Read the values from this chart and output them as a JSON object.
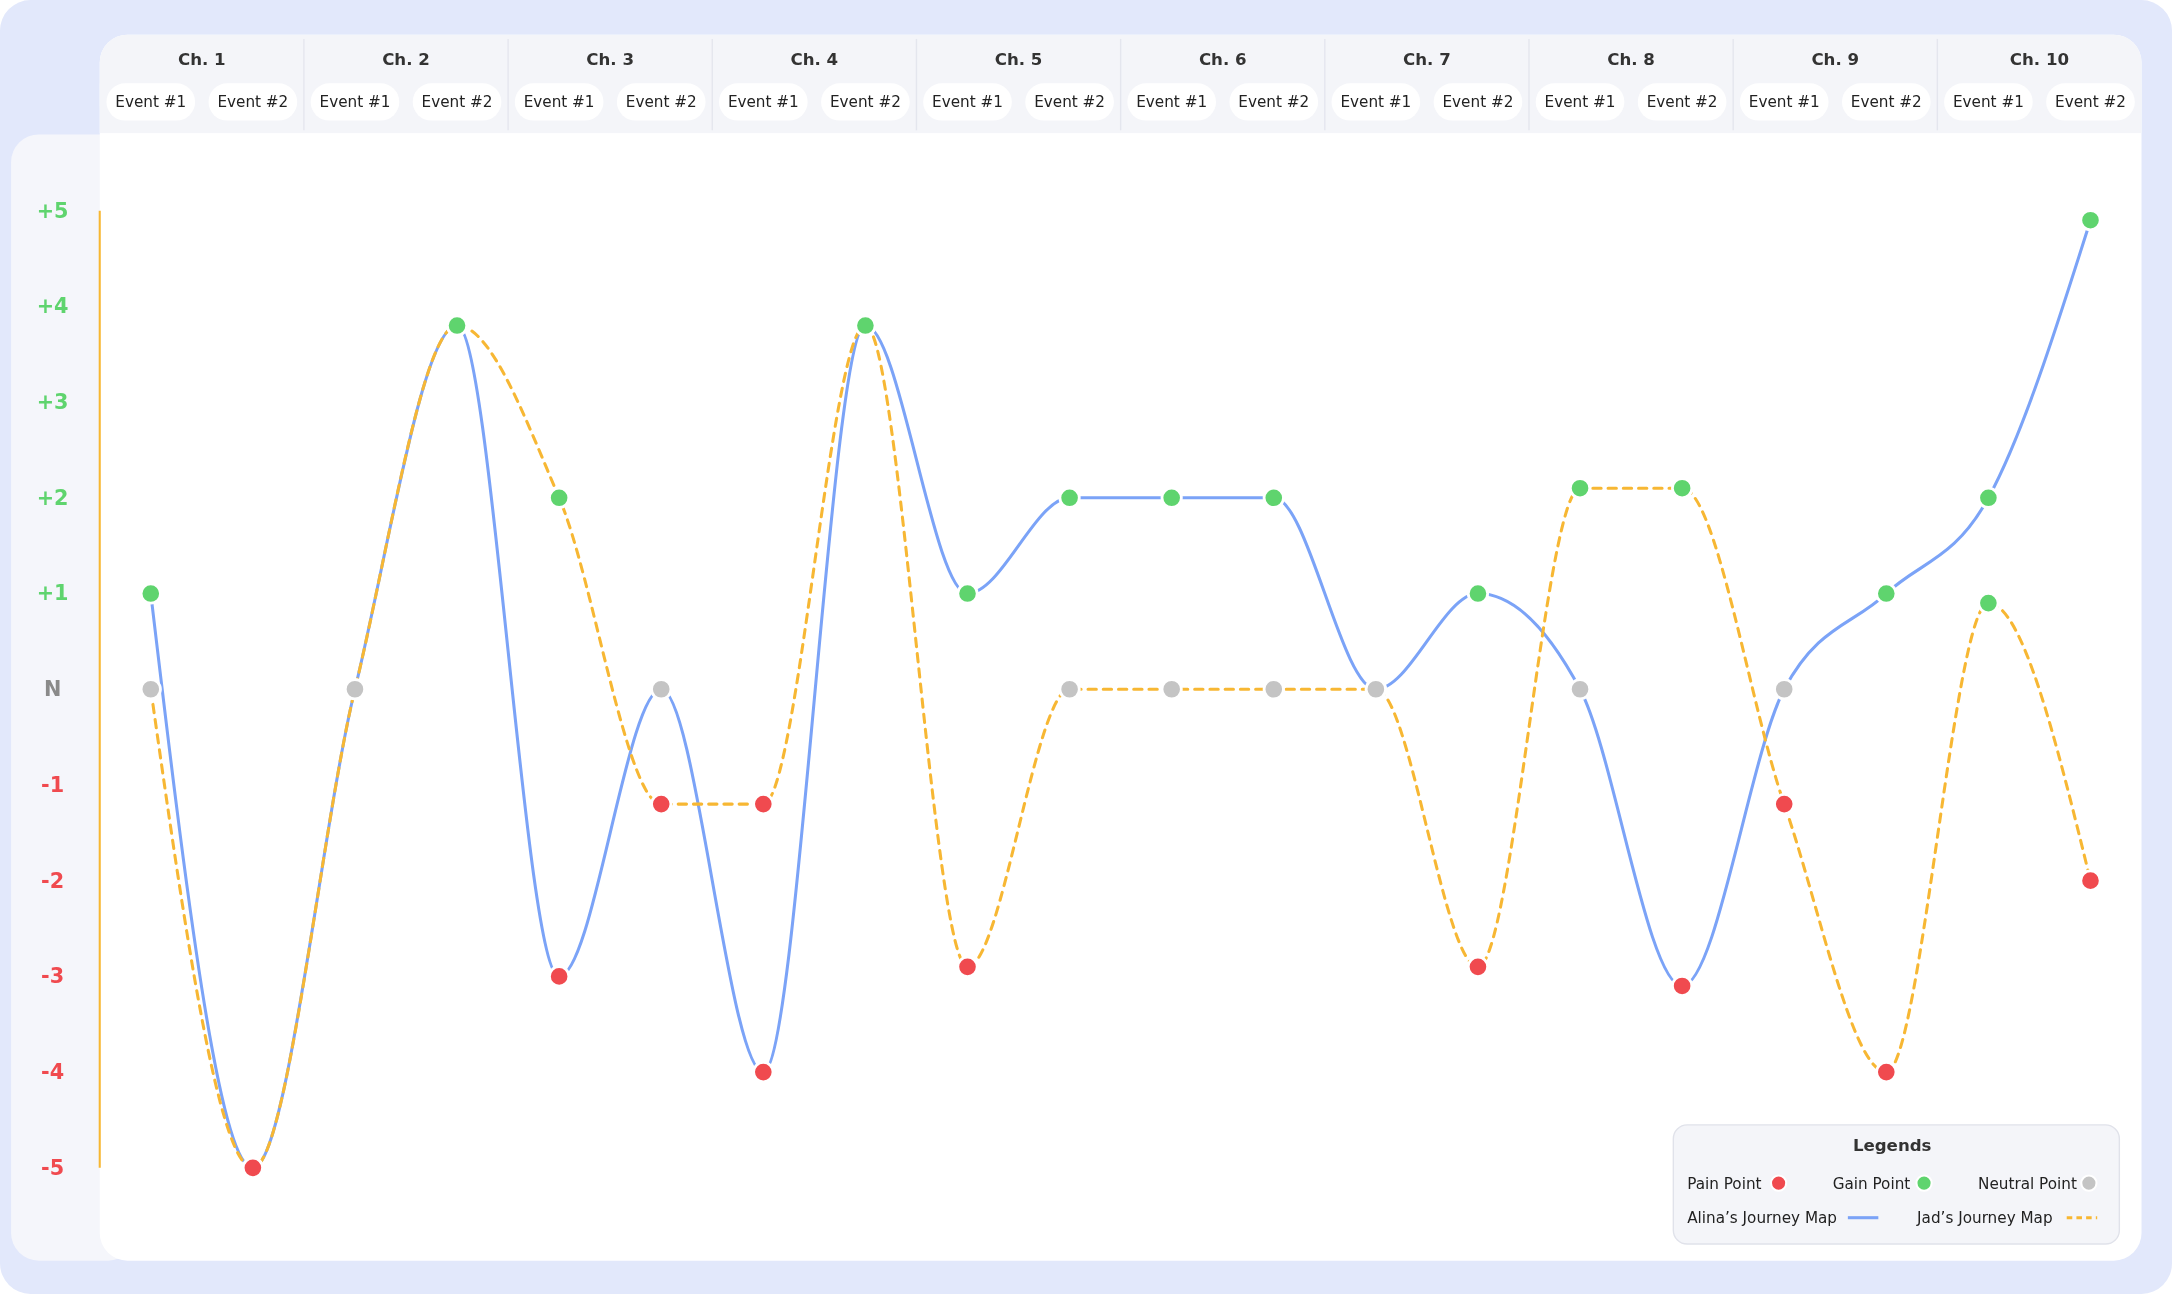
{
  "chart_data": {
    "type": "line",
    "categories": [
      "Event #1",
      "Event #2",
      "Event #1",
      "Event #2",
      "Event #1",
      "Event #2",
      "Event #1",
      "Event #2",
      "Event #1",
      "Event #2",
      "Event #1",
      "Event #2",
      "Event #1",
      "Event #2",
      "Event #1",
      "Event #2",
      "Event #1",
      "Event #2",
      "Event #1",
      "Event #2"
    ],
    "series": [
      {
        "name": "Alina’s Journey Map",
        "color": "#7ba3f7",
        "line_style": "solid",
        "values": [
          1,
          -5,
          0,
          3.8,
          -3,
          0,
          -4,
          3.8,
          1,
          2,
          2,
          2,
          0,
          1,
          0,
          -3.1,
          0,
          1,
          2,
          4.9
        ],
        "colors": [
          "#5fd46e",
          "#f04a4f",
          "#c4c4c4",
          "#5fd46e",
          "#f04a4f",
          "#c4c4c4",
          "#f04a4f",
          "#5fd46e",
          "#5fd46e",
          "#5fd46e",
          "#5fd46e",
          "#5fd46e",
          "#c4c4c4",
          "#5fd46e",
          "#c4c4c4",
          "#f04a4f",
          "#c4c4c4",
          "#5fd46e",
          "#5fd46e",
          "#5fd46e"
        ]
      },
      {
        "name": "Jad’s Journey Map",
        "color": "#f7b733",
        "line_style": "dashed",
        "values": [
          0,
          -5,
          0,
          3.8,
          2,
          -1.2,
          -1.2,
          3.8,
          -2.9,
          0,
          0,
          0,
          0,
          -2.9,
          2.1,
          2.1,
          -1.2,
          -4,
          0.9,
          -2
        ],
        "colors": [
          "#c4c4c4",
          "#f04a4f",
          "#c4c4c4",
          "#5fd46e",
          "#5fd46e",
          "#f04a4f",
          "#f04a4f",
          "#5fd46e",
          "#f04a4f",
          "#c4c4c4",
          "#c4c4c4",
          "#c4c4c4",
          "#c4c4c4",
          "#f04a4f",
          "#5fd46e",
          "#5fd46e",
          "#f04a4f",
          "#f04a4f",
          "#5fd46e",
          "#f04a4f"
        ]
      }
    ],
    "ylim": [
      -5,
      5
    ],
    "yticks": [
      {
        "value": 5,
        "label": "+5"
      },
      {
        "value": 4,
        "label": "+4"
      },
      {
        "value": 3,
        "label": "+3"
      },
      {
        "value": 2,
        "label": "+2"
      },
      {
        "value": 1,
        "label": "+1"
      },
      {
        "value": 0,
        "label": "N"
      },
      -1,
      -2,
      -3,
      -4,
      -5
    ],
    "marker": "circle",
    "grid": false,
    "legend": "bottom right",
    "legend_title": "Legends",
    "annotations": [
      "Ch. 1",
      "Ch. 2",
      "Ch. 3",
      "Ch. 4",
      "Ch. 5",
      "Ch. 6",
      "Ch. 7",
      "Ch. 8",
      "Ch. 9",
      "Ch. 10",
      "Pain Point",
      "Gain Point",
      "Neutral Point"
    ]
  }
}
